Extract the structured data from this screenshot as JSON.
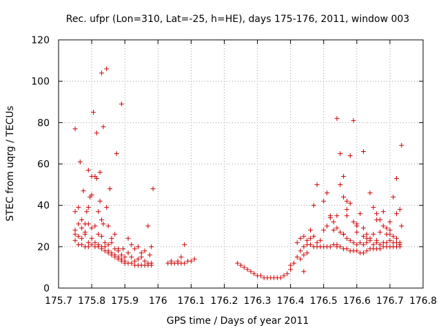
{
  "chart_data": {
    "type": "scatter",
    "title": "Rec. ufpr (Lon=310, Lat=-25, h=HE), days 175-176, 2011, window 003",
    "xlabel": "GPS time / Days of year 2011",
    "ylabel": "STEC from uqrg / TECUs",
    "xlim": [
      175.7,
      176.8
    ],
    "ylim": [
      0,
      120
    ],
    "xticks": [
      "175.7",
      "175.8",
      "175.9",
      "176",
      "176.1",
      "176.2",
      "176.3",
      "176.4",
      "176.5",
      "176.6",
      "176.7",
      "176.8"
    ],
    "yticks": [
      "0",
      "20",
      "40",
      "60",
      "80",
      "100",
      "120"
    ],
    "grid": true,
    "marker": "+",
    "color": "#cc0000",
    "series": [
      {
        "points": [
          [
            175.75,
            77
          ],
          [
            175.765,
            61
          ],
          [
            175.775,
            47
          ],
          [
            175.79,
            57
          ],
          [
            175.8,
            45
          ],
          [
            175.805,
            85
          ],
          [
            175.815,
            75
          ],
          [
            175.825,
            56
          ],
          [
            175.83,
            104
          ],
          [
            175.835,
            78
          ],
          [
            175.845,
            106
          ],
          [
            175.855,
            48
          ],
          [
            175.875,
            65
          ],
          [
            175.89,
            89
          ],
          [
            175.985,
            48
          ],
          [
            175.75,
            37
          ],
          [
            175.76,
            39
          ],
          [
            175.77,
            33
          ],
          [
            175.78,
            31
          ],
          [
            175.785,
            37
          ],
          [
            175.79,
            39
          ],
          [
            175.795,
            44
          ],
          [
            175.8,
            54
          ],
          [
            175.81,
            54
          ],
          [
            175.815,
            53
          ],
          [
            175.82,
            37
          ],
          [
            175.825,
            42
          ],
          [
            175.83,
            33
          ],
          [
            175.835,
            31
          ],
          [
            175.845,
            39
          ],
          [
            175.85,
            30
          ],
          [
            175.86,
            24
          ],
          [
            175.87,
            26
          ],
          [
            175.88,
            19
          ],
          [
            175.895,
            19
          ],
          [
            175.91,
            24
          ],
          [
            175.92,
            21
          ],
          [
            175.93,
            19
          ],
          [
            175.94,
            20
          ],
          [
            175.95,
            17
          ],
          [
            175.96,
            18
          ],
          [
            175.97,
            30
          ],
          [
            175.975,
            16
          ],
          [
            175.98,
            20
          ],
          [
            175.75,
            28
          ],
          [
            175.76,
            31
          ],
          [
            175.77,
            29
          ],
          [
            175.78,
            27
          ],
          [
            175.79,
            31
          ],
          [
            175.8,
            29
          ],
          [
            175.81,
            30
          ],
          [
            175.82,
            26
          ],
          [
            175.83,
            25
          ],
          [
            175.84,
            22
          ],
          [
            175.85,
            21
          ],
          [
            175.86,
            22
          ],
          [
            175.87,
            19
          ],
          [
            175.88,
            18
          ],
          [
            175.89,
            16
          ],
          [
            175.9,
            15
          ],
          [
            175.91,
            17
          ],
          [
            175.92,
            15
          ],
          [
            175.93,
            13
          ],
          [
            175.94,
            14
          ],
          [
            175.95,
            15
          ],
          [
            175.96,
            13
          ],
          [
            175.97,
            12
          ],
          [
            175.98,
            12
          ],
          [
            175.75,
            26
          ],
          [
            175.76,
            25
          ],
          [
            175.77,
            24
          ],
          [
            175.78,
            26
          ],
          [
            175.79,
            22
          ],
          [
            175.8,
            24
          ],
          [
            175.81,
            22
          ],
          [
            175.82,
            20
          ],
          [
            175.83,
            19
          ],
          [
            175.84,
            20
          ],
          [
            175.85,
            18
          ],
          [
            175.86,
            17
          ],
          [
            175.87,
            16
          ],
          [
            175.88,
            15
          ],
          [
            175.89,
            14
          ],
          [
            175.9,
            13
          ],
          [
            175.91,
            12
          ],
          [
            175.92,
            12
          ],
          [
            175.93,
            11
          ],
          [
            175.94,
            11
          ],
          [
            175.95,
            11
          ],
          [
            175.96,
            11
          ],
          [
            175.97,
            11
          ],
          [
            175.98,
            11
          ],
          [
            175.75,
            23
          ],
          [
            175.76,
            21
          ],
          [
            175.77,
            21
          ],
          [
            175.78,
            20
          ],
          [
            175.79,
            20
          ],
          [
            175.8,
            21
          ],
          [
            175.81,
            20
          ],
          [
            175.82,
            21
          ],
          [
            175.83,
            20
          ],
          [
            175.84,
            18
          ],
          [
            175.85,
            17
          ],
          [
            175.86,
            16
          ],
          [
            175.87,
            15
          ],
          [
            175.88,
            14
          ],
          [
            175.89,
            13
          ],
          [
            175.9,
            12
          ],
          [
            176.03,
            12
          ],
          [
            176.04,
            12
          ],
          [
            176.05,
            12
          ],
          [
            176.06,
            12
          ],
          [
            176.07,
            12
          ],
          [
            176.08,
            12
          ],
          [
            176.09,
            13
          ],
          [
            176.1,
            13
          ],
          [
            176.04,
            13
          ],
          [
            176.06,
            13
          ],
          [
            176.07,
            15
          ],
          [
            176.08,
            21
          ],
          [
            176.11,
            14
          ],
          [
            176.24,
            12
          ],
          [
            176.25,
            11
          ],
          [
            176.26,
            10
          ],
          [
            176.27,
            9
          ],
          [
            176.28,
            8
          ],
          [
            176.29,
            7
          ],
          [
            176.3,
            6
          ],
          [
            176.31,
            6
          ],
          [
            176.32,
            5
          ],
          [
            176.33,
            5
          ],
          [
            176.34,
            5
          ],
          [
            176.35,
            5
          ],
          [
            176.36,
            5
          ],
          [
            176.37,
            5
          ],
          [
            176.38,
            6
          ],
          [
            176.39,
            7
          ],
          [
            176.4,
            9
          ],
          [
            176.41,
            12
          ],
          [
            176.42,
            15
          ],
          [
            176.43,
            18
          ],
          [
            176.44,
            20
          ],
          [
            176.45,
            21
          ],
          [
            176.46,
            21
          ],
          [
            176.47,
            20
          ],
          [
            176.48,
            20
          ],
          [
            176.49,
            20
          ],
          [
            176.5,
            20
          ],
          [
            176.51,
            20
          ],
          [
            176.52,
            20
          ],
          [
            176.53,
            21
          ],
          [
            176.54,
            21
          ],
          [
            176.55,
            20
          ],
          [
            176.56,
            19
          ],
          [
            176.57,
            19
          ],
          [
            176.58,
            18
          ],
          [
            176.59,
            18
          ],
          [
            176.6,
            18
          ],
          [
            176.61,
            17
          ],
          [
            176.62,
            17
          ],
          [
            176.63,
            18
          ],
          [
            176.64,
            19
          ],
          [
            176.65,
            19
          ],
          [
            176.66,
            19
          ],
          [
            176.67,
            19
          ],
          [
            176.68,
            20
          ],
          [
            176.69,
            20
          ],
          [
            176.7,
            20
          ],
          [
            176.71,
            20
          ],
          [
            176.72,
            20
          ],
          [
            176.73,
            20
          ],
          [
            176.42,
            22
          ],
          [
            176.43,
            24
          ],
          [
            176.44,
            25
          ],
          [
            176.45,
            23
          ],
          [
            176.46,
            28
          ],
          [
            176.47,
            25
          ],
          [
            176.48,
            22
          ],
          [
            176.49,
            23
          ],
          [
            176.5,
            28
          ],
          [
            176.51,
            30
          ],
          [
            176.52,
            34
          ],
          [
            176.53,
            32
          ],
          [
            176.54,
            29
          ],
          [
            176.55,
            27
          ],
          [
            176.56,
            26
          ],
          [
            176.57,
            24
          ],
          [
            176.58,
            23
          ],
          [
            176.59,
            22
          ],
          [
            176.6,
            21
          ],
          [
            176.61,
            22
          ],
          [
            176.62,
            21
          ],
          [
            176.63,
            22
          ],
          [
            176.64,
            23
          ],
          [
            176.65,
            21
          ],
          [
            176.66,
            22
          ],
          [
            176.67,
            21
          ],
          [
            176.68,
            22
          ],
          [
            176.69,
            22
          ],
          [
            176.7,
            23
          ],
          [
            176.71,
            22
          ],
          [
            176.72,
            22
          ],
          [
            176.73,
            21
          ],
          [
            176.43,
            14
          ],
          [
            176.44,
            16
          ],
          [
            176.45,
            17
          ],
          [
            176.46,
            24
          ],
          [
            176.47,
            40
          ],
          [
            176.48,
            50
          ],
          [
            176.5,
            42
          ],
          [
            176.51,
            46
          ],
          [
            176.52,
            35
          ],
          [
            176.53,
            28
          ],
          [
            176.54,
            82
          ],
          [
            176.55,
            65
          ],
          [
            176.56,
            44
          ],
          [
            176.57,
            35
          ],
          [
            176.58,
            41
          ],
          [
            176.59,
            32
          ],
          [
            176.6,
            27
          ],
          [
            176.61,
            36
          ],
          [
            176.62,
            29
          ],
          [
            176.63,
            26
          ],
          [
            176.64,
            24
          ],
          [
            176.65,
            26
          ],
          [
            176.66,
            23
          ],
          [
            176.67,
            33
          ],
          [
            176.68,
            30
          ],
          [
            176.69,
            26
          ],
          [
            176.7,
            28
          ],
          [
            176.71,
            25
          ],
          [
            176.72,
            24
          ],
          [
            176.73,
            22
          ],
          [
            176.54,
            35
          ],
          [
            176.55,
            50
          ],
          [
            176.56,
            54
          ],
          [
            176.57,
            42
          ],
          [
            176.58,
            64
          ],
          [
            176.59,
            81
          ],
          [
            176.6,
            30
          ],
          [
            176.62,
            66
          ],
          [
            176.63,
            24
          ],
          [
            176.64,
            46
          ],
          [
            176.65,
            39
          ],
          [
            176.66,
            36
          ],
          [
            176.67,
            27
          ],
          [
            176.68,
            37
          ],
          [
            176.69,
            29
          ],
          [
            176.7,
            32
          ],
          [
            176.71,
            44
          ],
          [
            176.72,
            53
          ],
          [
            176.73,
            38
          ],
          [
            176.735,
            69
          ],
          [
            176.735,
            30
          ],
          [
            176.72,
            36
          ],
          [
            176.7,
            26
          ],
          [
            176.66,
            33
          ],
          [
            176.62,
            25
          ],
          [
            176.6,
            31
          ],
          [
            176.57,
            38
          ],
          [
            176.56,
            26
          ],
          [
            176.54,
            20
          ],
          [
            176.4,
            11
          ],
          [
            176.44,
            8
          ]
        ]
      }
    ]
  }
}
